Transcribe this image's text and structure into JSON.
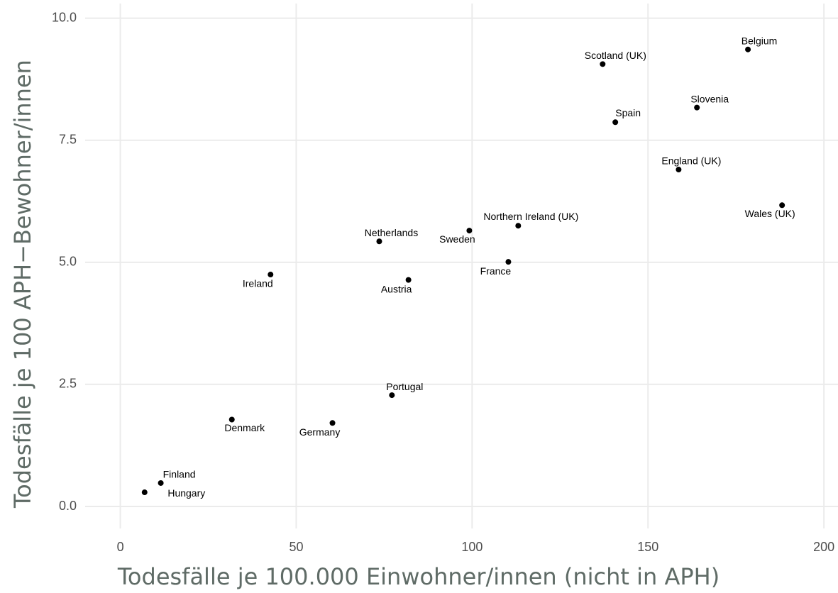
{
  "chart_data": {
    "type": "scatter",
    "xlabel": "Todesfälle je 100.000 Einwohner/innen (nicht in APH)",
    "ylabel": "Todesfälle je 100 APH−Bewohner/innen",
    "labels": [
      "Belgium",
      "Scotland (UK)",
      "Slovenia",
      "Spain",
      "England (UK)",
      "Wales (UK)",
      "Northern Ireland (UK)",
      "Sweden",
      "Netherlands",
      "France",
      "Ireland",
      "Austria",
      "Portugal",
      "Denmark",
      "Germany",
      "Finland",
      "Hungary"
    ],
    "x": [
      178.4,
      137.1,
      163.9,
      140.7,
      158.7,
      188.1,
      113.1,
      99.2,
      73.6,
      110.3,
      42.7,
      81.9,
      77.2,
      31.7,
      60.3,
      11.5,
      6.9
    ],
    "values": [
      9.36,
      9.06,
      8.17,
      7.87,
      6.9,
      6.17,
      5.75,
      5.65,
      5.43,
      5.01,
      4.75,
      4.64,
      2.28,
      1.78,
      1.71,
      0.48,
      0.29
    ],
    "color": "#000000",
    "xlim": [
      -10,
      204
    ],
    "ylim": [
      -0.45,
      10.3
    ],
    "xticks": [
      0,
      50,
      100,
      150,
      200
    ],
    "yticks": [
      {
        "value": 0,
        "label": "0.0"
      },
      2.5,
      {
        "value": 5,
        "label": "5.0"
      },
      7.5,
      {
        "value": 10,
        "label": "10.0"
      }
    ],
    "grid": true
  }
}
